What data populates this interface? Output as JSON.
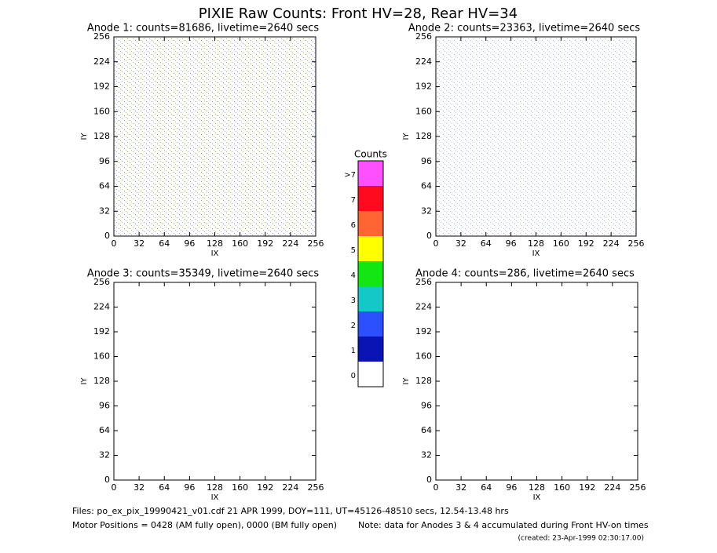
{
  "title": "PIXIE Raw Counts:  Front HV=28, Rear HV=34",
  "chart_data": [
    {
      "type": "heatmap",
      "title": "Anode 1: counts=81686, livetime=2640 secs",
      "xlabel": "IX",
      "ylabel": "IY",
      "xlim": [
        0,
        256
      ],
      "ylim": [
        0,
        256
      ],
      "xticks": [
        0,
        32,
        64,
        96,
        128,
        160,
        192,
        224,
        256
      ],
      "yticks": [
        0,
        32,
        64,
        96,
        128,
        160,
        192,
        224,
        256
      ]
    },
    {
      "type": "heatmap",
      "title": "Anode 2: counts=23363, livetime=2640 secs",
      "xlabel": "IX",
      "ylabel": "IY",
      "xlim": [
        0,
        256
      ],
      "ylim": [
        0,
        256
      ],
      "xticks": [
        0,
        32,
        64,
        96,
        128,
        160,
        192,
        224,
        256
      ],
      "yticks": [
        0,
        32,
        64,
        96,
        128,
        160,
        192,
        224,
        256
      ]
    },
    {
      "type": "heatmap",
      "title": "Anode 3: counts=35349, livetime=2640 secs",
      "xlabel": "IX",
      "ylabel": "IY",
      "xlim": [
        0,
        256
      ],
      "ylim": [
        0,
        256
      ],
      "xticks": [
        0,
        32,
        64,
        96,
        128,
        160,
        192,
        224,
        256
      ],
      "yticks": [
        0,
        32,
        64,
        96,
        128,
        160,
        192,
        224,
        256
      ]
    },
    {
      "type": "heatmap",
      "title": "Anode 4: counts=286, livetime=2640 secs",
      "xlabel": "IX",
      "ylabel": "IY",
      "xlim": [
        0,
        256
      ],
      "ylim": [
        0,
        256
      ],
      "xticks": [
        0,
        32,
        64,
        96,
        128,
        160,
        192,
        224,
        256
      ],
      "yticks": [
        0,
        32,
        64,
        96,
        128,
        160,
        192,
        224,
        256
      ]
    },
    {
      "type": "colorbar",
      "title": "Counts",
      "categories": [
        "0",
        "1",
        "2",
        "3",
        "4",
        "5",
        "6",
        "7",
        ">7"
      ],
      "colors": [
        "#ffffff",
        "#0a14b4",
        "#2d50ff",
        "#14c8c8",
        "#14e614",
        "#ffff00",
        "#ff6432",
        "#ff0a1e",
        "#ff50ff"
      ]
    }
  ],
  "footer": {
    "files": "Files: po_ex_pix_19990421_v01.cdf    21 APR 1999, DOY=111, UT=45126-48510 secs, 12.54-13.48 hrs",
    "motor": "Motor Positions = 0428 (AM fully open), 0000 (BM fully open)",
    "note": "Note: data for Anodes 3 & 4 accumulated during Front HV-on times",
    "created": "(created: 23-Apr-1999 02:30:17.00)"
  }
}
